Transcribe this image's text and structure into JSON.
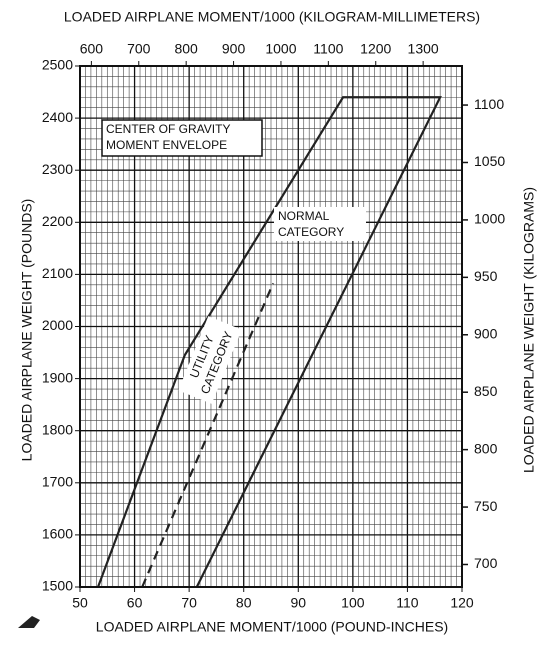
{
  "chart_data": {
    "type": "line",
    "title": "LOADED AIRPLANE MOMENT/1000 (KILOGRAM-MILLIMETERS)",
    "xlabel": "LOADED AIRPLANE MOMENT/1000 (POUND-INCHES)",
    "ylabel": "LOADED AIRPLANE WEIGHT (POUNDS)",
    "y2label": "LOADED AIRPLANE WEIGHT (KILOGRAMS)",
    "xlim": [
      50,
      120
    ],
    "xticks": [
      50,
      60,
      70,
      80,
      90,
      100,
      110,
      120
    ],
    "ylim": [
      1500,
      2500
    ],
    "yticks": [
      1500,
      1600,
      1700,
      1800,
      1900,
      2000,
      2100,
      2200,
      2300,
      2400,
      2500
    ],
    "x2lim": [
      576,
      1382
    ],
    "x2ticks": [
      600,
      700,
      800,
      900,
      1000,
      1100,
      1200,
      1300
    ],
    "y2lim": [
      680.4,
      1134
    ],
    "y2ticks": [
      700,
      750,
      800,
      850,
      900,
      950,
      1000,
      1050,
      1100
    ],
    "grid": true,
    "series": [
      {
        "color": "#222222",
        "dashed": false,
        "x": [
          53.3,
          69.2,
          98.2,
          116,
          71.4
        ],
        "values": [
          1500,
          1945,
          2440,
          2440,
          1500
        ]
      },
      {
        "color": "#222222",
        "dashed": true,
        "x": [
          61.4,
          85.4
        ],
        "values": [
          1500,
          2083
        ]
      }
    ],
    "annotations": {
      "envelope": [
        "CENTER OF GRAVITY",
        "MOMENT ENVELOPE"
      ],
      "normal": [
        "NORMAL",
        "CATEGORY"
      ],
      "utility": [
        "UTILITY",
        "CATEGORY"
      ]
    }
  }
}
